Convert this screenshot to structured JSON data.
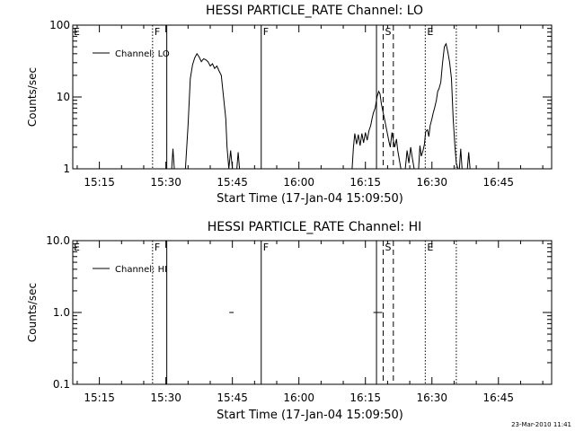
{
  "footer_timestamp": "23-Mar-2010 11:41",
  "chart_data": [
    {
      "type": "line",
      "title": "HESSI PARTICLE_RATE Channel: LO",
      "xlabel": "Start Time (17-Jan-04 15:09:50)",
      "ylabel": "Counts/sec",
      "yscale": "log",
      "ylim": [
        1,
        100
      ],
      "xlim_minutes": [
        -6,
        102
      ],
      "x_ticks": [
        {
          "m": 0,
          "label": "15:15"
        },
        {
          "m": 15,
          "label": "15:30"
        },
        {
          "m": 30,
          "label": "15:45"
        },
        {
          "m": 45,
          "label": "16:00"
        },
        {
          "m": 60,
          "label": "16:15"
        },
        {
          "m": 75,
          "label": "16:30"
        },
        {
          "m": 90,
          "label": "16:45"
        }
      ],
      "y_ticks": [
        {
          "v": 1,
          "label": "1"
        },
        {
          "v": 10,
          "label": "10"
        },
        {
          "v": 100,
          "label": "100"
        }
      ],
      "legend": {
        "label": "Channel: LO",
        "position": "top-left"
      },
      "markers": [
        {
          "m": 12,
          "style": "dotted",
          "label": "F"
        },
        {
          "m": 15.2,
          "style": "solid",
          "label": ""
        },
        {
          "m": 36.5,
          "style": "solid",
          "label": "F"
        },
        {
          "m": 62.5,
          "style": "solid",
          "label": ""
        },
        {
          "m": 64,
          "style": "dashed",
          "label": "S"
        },
        {
          "m": 66.3,
          "style": "dashed",
          "label": ""
        },
        {
          "m": 73.5,
          "style": "dotted",
          "label": "E"
        },
        {
          "m": 80.5,
          "style": "dotted",
          "label": ""
        }
      ],
      "edge_labels": [
        {
          "m": -6,
          "label": "E"
        }
      ],
      "series": [
        {
          "name": "Channel: LO",
          "segments": [
            [
              [
                16.3,
                1
              ],
              [
                16.6,
                1.9
              ],
              [
                16.9,
                1
              ]
            ],
            [
              [
                19.4,
                1
              ],
              [
                20,
                4
              ],
              [
                20.5,
                18
              ],
              [
                21,
                28
              ],
              [
                21.5,
                35
              ],
              [
                22,
                40
              ],
              [
                22.5,
                36
              ],
              [
                23,
                31
              ],
              [
                23.5,
                34
              ],
              [
                24,
                33
              ],
              [
                24.5,
                31
              ],
              [
                25,
                27
              ],
              [
                25.5,
                29
              ],
              [
                26,
                25
              ],
              [
                26.5,
                27
              ],
              [
                27,
                23
              ],
              [
                27.5,
                20
              ],
              [
                28,
                10
              ],
              [
                28.5,
                5
              ],
              [
                28.8,
                2
              ],
              [
                29.2,
                1
              ],
              [
                29.6,
                1.8
              ],
              [
                30,
                1
              ]
            ],
            [
              [
                31,
                1
              ],
              [
                31.3,
                1.7
              ],
              [
                31.6,
                1
              ]
            ],
            [
              [
                57,
                1
              ],
              [
                57.3,
                2
              ],
              [
                57.6,
                3.1
              ],
              [
                58,
                2.2
              ],
              [
                58.4,
                3
              ],
              [
                58.8,
                2.1
              ],
              [
                59.2,
                3.1
              ],
              [
                59.6,
                2.3
              ],
              [
                60,
                3.2
              ],
              [
                60.4,
                2.5
              ],
              [
                60.8,
                3.4
              ],
              [
                61.2,
                4
              ],
              [
                61.5,
                5
              ],
              [
                61.8,
                6
              ],
              [
                62.2,
                7
              ],
              [
                62.6,
                10
              ],
              [
                63,
                12
              ],
              [
                63.3,
                11
              ],
              [
                63.6,
                8
              ],
              [
                64,
                6
              ],
              [
                64.3,
                5
              ],
              [
                64.6,
                4
              ],
              [
                65,
                3
              ],
              [
                65.3,
                2.4
              ],
              [
                65.6,
                2
              ],
              [
                66,
                3.2
              ],
              [
                66.3,
                2.5
              ],
              [
                66.6,
                2
              ],
              [
                67,
                2.6
              ],
              [
                67.3,
                1.8
              ],
              [
                67.6,
                1.4
              ],
              [
                68,
                1
              ]
            ],
            [
              [
                69,
                1
              ],
              [
                69.4,
                1.8
              ],
              [
                69.8,
                1.2
              ],
              [
                70.2,
                2
              ],
              [
                70.6,
                1.4
              ],
              [
                71,
                1
              ]
            ],
            [
              [
                72,
                1
              ],
              [
                72.3,
                2.1
              ],
              [
                72.6,
                1.5
              ],
              [
                73,
                1.8
              ],
              [
                73.3,
                2.2
              ],
              [
                73.6,
                3.3
              ],
              [
                74,
                3.5
              ],
              [
                74.3,
                2.8
              ],
              [
                74.6,
                4
              ],
              [
                75,
                5
              ],
              [
                75.3,
                6
              ],
              [
                75.6,
                7
              ],
              [
                76,
                9
              ],
              [
                76.3,
                12
              ],
              [
                76.6,
                13
              ],
              [
                77,
                16
              ],
              [
                77.4,
                30
              ],
              [
                77.8,
                50
              ],
              [
                78.2,
                55
              ],
              [
                78.6,
                42
              ],
              [
                79,
                30
              ],
              [
                79.4,
                18
              ],
              [
                79.8,
                5
              ],
              [
                80.2,
                2
              ],
              [
                80.5,
                1.2
              ],
              [
                80.9,
                1
              ]
            ],
            [
              [
                81.2,
                1
              ],
              [
                81.5,
                1.9
              ],
              [
                81.8,
                1
              ]
            ],
            [
              [
                83,
                1
              ],
              [
                83.3,
                1.7
              ],
              [
                83.6,
                1
              ]
            ]
          ]
        }
      ]
    },
    {
      "type": "line",
      "title": "HESSI PARTICLE_RATE Channel: HI",
      "xlabel": "Start Time (17-Jan-04 15:09:50)",
      "ylabel": "Counts/sec",
      "yscale": "log",
      "ylim": [
        0.1,
        10
      ],
      "xlim_minutes": [
        -6,
        102
      ],
      "x_ticks": [
        {
          "m": 0,
          "label": "15:15"
        },
        {
          "m": 15,
          "label": "15:30"
        },
        {
          "m": 30,
          "label": "15:45"
        },
        {
          "m": 45,
          "label": "16:00"
        },
        {
          "m": 60,
          "label": "16:15"
        },
        {
          "m": 75,
          "label": "16:30"
        },
        {
          "m": 90,
          "label": "16:45"
        }
      ],
      "y_ticks": [
        {
          "v": 0.1,
          "label": "0.1"
        },
        {
          "v": 1,
          "label": "1.0"
        },
        {
          "v": 10,
          "label": "10.0"
        }
      ],
      "legend": {
        "label": "Channel: HI",
        "position": "top-left"
      },
      "markers": [
        {
          "m": 12,
          "style": "dotted",
          "label": "F"
        },
        {
          "m": 15.2,
          "style": "solid",
          "label": ""
        },
        {
          "m": 36.5,
          "style": "solid",
          "label": "F"
        },
        {
          "m": 62.5,
          "style": "solid",
          "label": ""
        },
        {
          "m": 64,
          "style": "dashed",
          "label": "S"
        },
        {
          "m": 66.3,
          "style": "dashed",
          "label": ""
        },
        {
          "m": 73.5,
          "style": "dotted",
          "label": "E"
        },
        {
          "m": 80.5,
          "style": "dotted",
          "label": ""
        }
      ],
      "edge_labels": [
        {
          "m": -6,
          "label": "E"
        }
      ],
      "series": [
        {
          "name": "Channel: HI",
          "segments": [
            [
              [
                29.3,
                1
              ],
              [
                30.3,
                1
              ]
            ],
            [
              [
                61.8,
                1
              ],
              [
                63.8,
                1
              ]
            ]
          ]
        }
      ]
    }
  ]
}
